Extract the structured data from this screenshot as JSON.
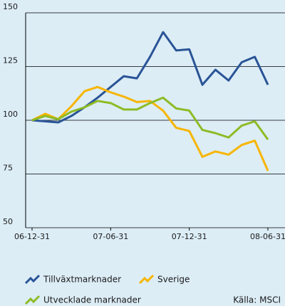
{
  "chart_data": {
    "type": "line",
    "categories": [
      "06-12-31",
      null,
      null,
      null,
      null,
      null,
      "07-06-31",
      null,
      null,
      null,
      null,
      null,
      "07-12-31",
      null,
      null,
      null,
      null,
      null,
      "08-06-31"
    ],
    "series": [
      {
        "name": "Tillväxtmarknader",
        "color": "#2a5496",
        "values": [
          100,
          99.5,
          99,
          102,
          106,
          110.5,
          115.5,
          120.5,
          119.5,
          129.5,
          141,
          132.5,
          133,
          116.5,
          123.5,
          118.5,
          127,
          129.5,
          116.5
        ]
      },
      {
        "name": "Sverige",
        "color": "#f7b500",
        "values": [
          100,
          103,
          100.5,
          106.5,
          113.5,
          115.5,
          113,
          111,
          108.5,
          109,
          104.5,
          96.5,
          95,
          83,
          85.5,
          84,
          88.5,
          90.5,
          76.5
        ]
      },
      {
        "name": "Utvecklade marknader",
        "color": "#8dbb25",
        "values": [
          100,
          102,
          100.5,
          104,
          106,
          109,
          108,
          105,
          105,
          108,
          110.5,
          105.5,
          104.5,
          95.5,
          94,
          92,
          97.5,
          99.5,
          91
        ]
      }
    ],
    "ylim": [
      50,
      150
    ],
    "yticks": [
      50,
      75,
      100,
      125,
      150
    ],
    "grid": true,
    "source": "Källa: MSCI"
  }
}
